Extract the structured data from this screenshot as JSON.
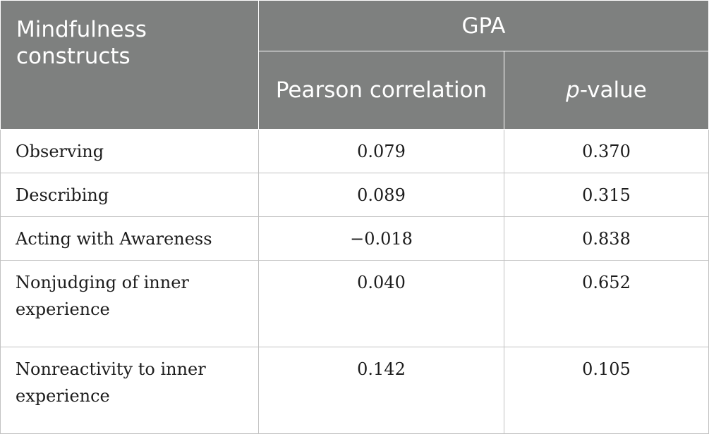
{
  "table": {
    "header": {
      "construct_label": "Mindfulness constructs",
      "group_label": "GPA",
      "col_pearson": "Pearson correlation",
      "col_p_italic": "p",
      "col_p_rest": "-value"
    },
    "rows": [
      {
        "construct": "Observing",
        "pearson": "0.079",
        "p": "0.370"
      },
      {
        "construct": "Describing",
        "pearson": "0.089",
        "p": "0.315"
      },
      {
        "construct": "Acting with Awareness",
        "pearson": "−0.018",
        "p": "0.838"
      },
      {
        "construct": "Nonjudging of inner experience",
        "pearson": "0.040",
        "p": "0.652"
      },
      {
        "construct": "Nonreactivity to inner experience",
        "pearson": "0.142",
        "p": "0.105"
      }
    ]
  }
}
